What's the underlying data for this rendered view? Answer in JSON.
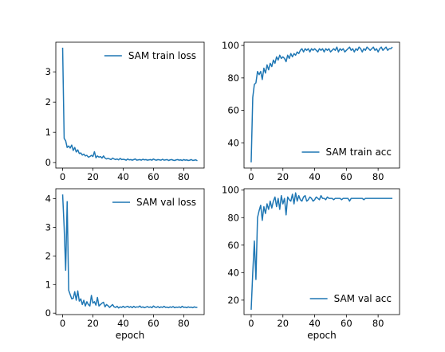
{
  "line_color": "#1f77b4",
  "chart_data": [
    {
      "type": "line",
      "xlabel": "",
      "ylabel": "",
      "xlim": [
        -4.5,
        93.5
      ],
      "ylim": [
        -0.18,
        3.98
      ],
      "xticks": [
        0,
        20,
        40,
        60,
        80
      ],
      "yticks": [
        0,
        1,
        2,
        3
      ],
      "grid": false,
      "legend": "top-right",
      "series": [
        {
          "name": "SAM train loss",
          "x": [
            0,
            1,
            2,
            3,
            4,
            5,
            6,
            7,
            8,
            9,
            10,
            11,
            12,
            13,
            14,
            15,
            16,
            17,
            18,
            19,
            20,
            21,
            22,
            23,
            24,
            25,
            26,
            27,
            28,
            29,
            30,
            31,
            32,
            33,
            34,
            35,
            36,
            37,
            38,
            39,
            40,
            41,
            42,
            43,
            44,
            45,
            46,
            47,
            48,
            49,
            50,
            51,
            52,
            53,
            54,
            55,
            56,
            57,
            58,
            59,
            60,
            61,
            62,
            63,
            64,
            65,
            66,
            67,
            68,
            69,
            70,
            71,
            72,
            73,
            74,
            75,
            76,
            77,
            78,
            79,
            80,
            81,
            82,
            83,
            84,
            85,
            86,
            87,
            88,
            89
          ],
          "y": [
            3.8,
            0.8,
            0.72,
            0.5,
            0.55,
            0.48,
            0.58,
            0.4,
            0.5,
            0.35,
            0.42,
            0.3,
            0.32,
            0.25,
            0.28,
            0.22,
            0.24,
            0.18,
            0.2,
            0.24,
            0.2,
            0.36,
            0.16,
            0.22,
            0.18,
            0.2,
            0.15,
            0.22,
            0.15,
            0.12,
            0.14,
            0.12,
            0.1,
            0.15,
            0.12,
            0.1,
            0.12,
            0.09,
            0.14,
            0.1,
            0.11,
            0.1,
            0.08,
            0.12,
            0.09,
            0.1,
            0.08,
            0.1,
            0.12,
            0.08,
            0.09,
            0.1,
            0.08,
            0.11,
            0.09,
            0.1,
            0.08,
            0.09,
            0.1,
            0.08,
            0.12,
            0.09,
            0.08,
            0.1,
            0.09,
            0.08,
            0.11,
            0.08,
            0.09,
            0.1,
            0.07,
            0.09,
            0.1,
            0.08,
            0.07,
            0.09,
            0.1,
            0.08,
            0.09,
            0.07,
            0.1,
            0.08,
            0.09,
            0.07,
            0.08,
            0.1,
            0.07,
            0.08,
            0.09,
            0.06
          ]
        }
      ]
    },
    {
      "type": "line",
      "xlabel": "",
      "ylabel": "",
      "xlim": [
        -4.5,
        93.5
      ],
      "ylim": [
        24.5,
        102.0
      ],
      "xticks": [
        0,
        20,
        40,
        60,
        80
      ],
      "yticks": [
        40,
        60,
        80,
        100
      ],
      "grid": false,
      "legend": "bottom-right",
      "series": [
        {
          "name": "SAM train acc",
          "x": [
            0,
            1,
            2,
            3,
            4,
            5,
            6,
            7,
            8,
            9,
            10,
            11,
            12,
            13,
            14,
            15,
            16,
            17,
            18,
            19,
            20,
            21,
            22,
            23,
            24,
            25,
            26,
            27,
            28,
            29,
            30,
            31,
            32,
            33,
            34,
            35,
            36,
            37,
            38,
            39,
            40,
            41,
            42,
            43,
            44,
            45,
            46,
            47,
            48,
            49,
            50,
            51,
            52,
            53,
            54,
            55,
            56,
            57,
            58,
            59,
            60,
            61,
            62,
            63,
            64,
            65,
            66,
            67,
            68,
            69,
            70,
            71,
            72,
            73,
            74,
            75,
            76,
            77,
            78,
            79,
            80,
            81,
            82,
            83,
            84,
            85,
            86,
            87,
            88,
            89
          ],
          "y": [
            28,
            68,
            76,
            77,
            84,
            82,
            84,
            79,
            86,
            83,
            88,
            85,
            89,
            87,
            91,
            89,
            93,
            91,
            94,
            92,
            93,
            92,
            90,
            94,
            92,
            95,
            93,
            95,
            94,
            96,
            95,
            97,
            98,
            96,
            98,
            97,
            98,
            96,
            98,
            97,
            98,
            97,
            96,
            98,
            97,
            98,
            96,
            98,
            97,
            98,
            96,
            97,
            98,
            97,
            99,
            96,
            98,
            97,
            98,
            96,
            97,
            98,
            99,
            97,
            98,
            96,
            98,
            97,
            99,
            98,
            96,
            98,
            97,
            99,
            98,
            97,
            98,
            99,
            97,
            98,
            96,
            98,
            99,
            97,
            98,
            99,
            97,
            98,
            98,
            99
          ]
        }
      ]
    },
    {
      "type": "line",
      "xlabel": "epoch",
      "ylabel": "",
      "xlim": [
        -4.5,
        93.5
      ],
      "ylim": [
        -0.05,
        4.35
      ],
      "xticks": [
        0,
        20,
        40,
        60,
        80
      ],
      "yticks": [
        0,
        1,
        2,
        3,
        4
      ],
      "grid": false,
      "legend": "top-right",
      "series": [
        {
          "name": "SAM val loss",
          "x": [
            0,
            1,
            2,
            3,
            4,
            5,
            6,
            7,
            8,
            9,
            10,
            11,
            12,
            13,
            14,
            15,
            16,
            17,
            18,
            19,
            20,
            21,
            22,
            23,
            24,
            25,
            26,
            27,
            28,
            29,
            30,
            31,
            32,
            33,
            34,
            35,
            36,
            37,
            38,
            39,
            40,
            41,
            42,
            43,
            44,
            45,
            46,
            47,
            48,
            49,
            50,
            51,
            52,
            53,
            54,
            55,
            56,
            57,
            58,
            59,
            60,
            61,
            62,
            63,
            64,
            65,
            66,
            67,
            68,
            69,
            70,
            71,
            72,
            73,
            74,
            75,
            76,
            77,
            78,
            79,
            80,
            81,
            82,
            83,
            84,
            85,
            86,
            87,
            88,
            89
          ],
          "y": [
            4.15,
            3.0,
            1.5,
            3.9,
            0.8,
            0.65,
            0.5,
            0.52,
            0.75,
            0.45,
            0.78,
            0.42,
            0.5,
            0.3,
            0.45,
            0.25,
            0.4,
            0.3,
            0.25,
            0.62,
            0.35,
            0.4,
            0.28,
            0.55,
            0.25,
            0.3,
            0.35,
            0.38,
            0.22,
            0.3,
            0.26,
            0.2,
            0.25,
            0.3,
            0.22,
            0.2,
            0.24,
            0.18,
            0.22,
            0.2,
            0.24,
            0.2,
            0.22,
            0.24,
            0.2,
            0.23,
            0.19,
            0.24,
            0.2,
            0.22,
            0.21,
            0.25,
            0.2,
            0.22,
            0.19,
            0.21,
            0.23,
            0.2,
            0.22,
            0.19,
            0.25,
            0.21,
            0.2,
            0.23,
            0.19,
            0.22,
            0.2,
            0.24,
            0.2,
            0.21,
            0.19,
            0.22,
            0.2,
            0.23,
            0.19,
            0.21,
            0.2,
            0.22,
            0.19,
            0.24,
            0.2,
            0.21,
            0.19,
            0.22,
            0.2,
            0.21,
            0.19,
            0.22,
            0.2,
            0.2
          ]
        }
      ]
    },
    {
      "type": "line",
      "xlabel": "epoch",
      "ylabel": "",
      "xlim": [
        -4.5,
        93.5
      ],
      "ylim": [
        9.5,
        101.0
      ],
      "xticks": [
        0,
        20,
        40,
        60,
        80
      ],
      "yticks": [
        20,
        40,
        60,
        80,
        100
      ],
      "grid": false,
      "legend": "bottom-right",
      "series": [
        {
          "name": "SAM val acc",
          "x": [
            0,
            1,
            2,
            3,
            4,
            5,
            6,
            7,
            8,
            9,
            10,
            11,
            12,
            13,
            14,
            15,
            16,
            17,
            18,
            19,
            20,
            21,
            22,
            23,
            24,
            25,
            26,
            27,
            28,
            29,
            30,
            31,
            32,
            33,
            34,
            35,
            36,
            37,
            38,
            39,
            40,
            41,
            42,
            43,
            44,
            45,
            46,
            47,
            48,
            49,
            50,
            51,
            52,
            53,
            54,
            55,
            56,
            57,
            58,
            59,
            60,
            61,
            62,
            63,
            64,
            65,
            66,
            67,
            68,
            69,
            70,
            71,
            72,
            73,
            74,
            75,
            76,
            77,
            78,
            79,
            80,
            81,
            82,
            83,
            84,
            85,
            86,
            87,
            88,
            89
          ],
          "y": [
            13,
            40,
            63,
            35,
            80,
            85,
            89,
            78,
            88,
            83,
            90,
            86,
            92,
            87,
            92,
            95,
            88,
            94,
            86,
            96,
            90,
            94,
            82,
            95,
            93,
            92,
            97,
            90,
            98,
            92,
            96,
            93,
            92,
            95,
            96,
            92,
            93,
            95,
            94,
            92,
            93,
            95,
            94,
            93,
            96,
            94,
            94,
            93,
            95,
            94,
            94,
            94,
            93,
            94,
            94,
            94,
            94,
            93,
            94,
            94,
            94,
            94,
            92,
            94,
            94,
            94,
            94,
            94,
            94,
            94,
            94,
            93,
            94,
            94,
            94,
            94,
            94,
            94,
            94,
            94,
            94,
            94,
            94,
            94,
            94,
            94,
            94,
            94,
            94,
            94
          ]
        }
      ]
    }
  ]
}
